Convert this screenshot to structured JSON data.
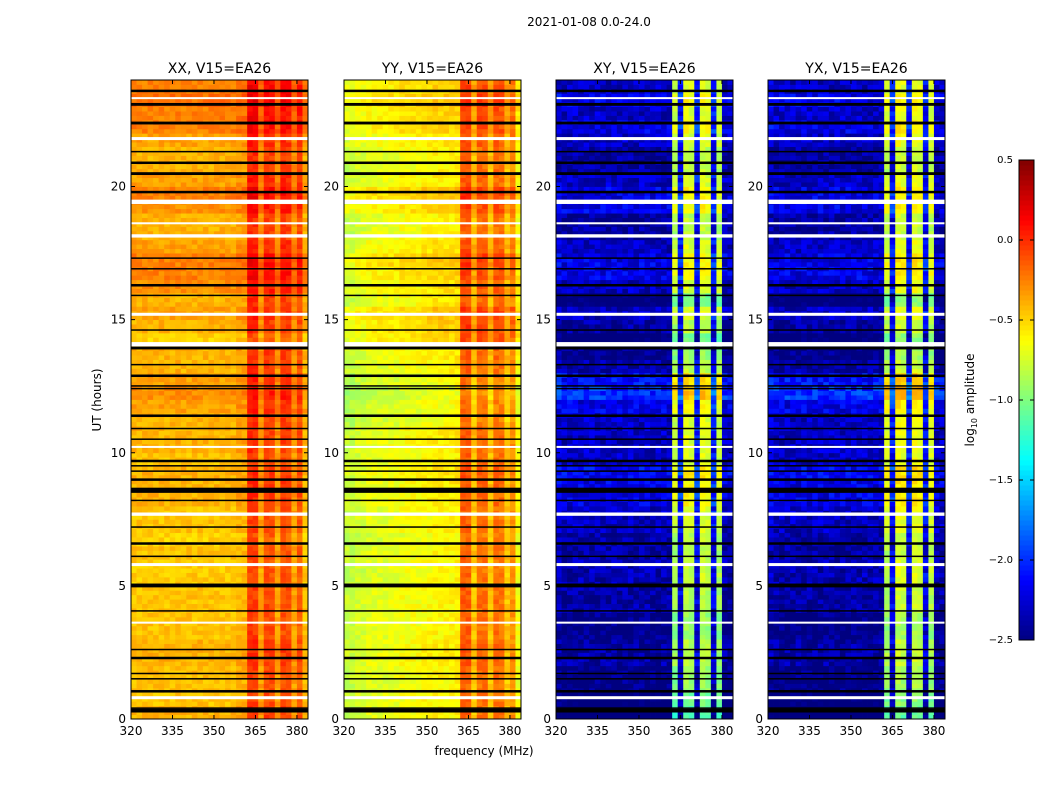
{
  "chart_data": {
    "type": "heatmap",
    "suptitle": "2021-01-08 0.0-24.0",
    "xlabel": "frequency (MHz)",
    "ylabel": "UT (hours)",
    "xlim": [
      320,
      384
    ],
    "ylim": [
      0,
      24
    ],
    "xticks": [
      320,
      335,
      350,
      365,
      380
    ],
    "xtick_labels": [
      "320",
      "335",
      "350",
      "365",
      "380"
    ],
    "yticks": [
      0,
      5,
      10,
      15,
      20
    ],
    "ytick_labels": [
      "0",
      "5",
      "10",
      "15",
      "20"
    ],
    "colorbar": {
      "label_main": "log",
      "label_sub": "10",
      "label_rest": " amplitude",
      "range": [
        -2.5,
        0.5
      ],
      "colormap": "jet",
      "ticks": [
        0.5,
        0.0,
        -0.5,
        -1.0,
        -1.5,
        -2.0,
        -2.5
      ],
      "tick_labels": [
        "0.5",
        "0.0",
        "−0.5",
        "−1.0",
        "−1.5",
        "−2.0",
        "−2.5"
      ]
    },
    "channel_width_mhz": 2,
    "time_step_hours": 0.5,
    "panels": [
      {
        "title": "XX, V15=EA26",
        "channel_profile": [
          -0.45,
          -0.45,
          -0.45,
          -0.45,
          -0.45,
          -0.45,
          -0.45,
          -0.45,
          -0.45,
          -0.45,
          -0.45,
          -0.45,
          -0.45,
          -0.45,
          -0.45,
          -0.45,
          -0.45,
          -0.45,
          -0.45,
          -0.4,
          -0.4,
          -0.05,
          -0.05,
          -0.35,
          -0.1,
          -0.1,
          -0.35,
          -0.1,
          -0.12,
          -0.35,
          -0.15,
          -0.45
        ],
        "time_offset": [
          0.05,
          0,
          0,
          0.02,
          0.05,
          0.05,
          0,
          0,
          0,
          0,
          -0.02,
          -0.02,
          0,
          -0.05,
          0,
          0,
          0.05,
          0.05,
          0.05,
          0,
          0.05,
          0.05,
          0.05,
          0.1,
          0.15,
          0.1,
          0.05,
          0.05,
          -0.05,
          0.05,
          0.1,
          0.05,
          0.15,
          0.2,
          0.2,
          0.1,
          0.05,
          0.05,
          0.15,
          0.2,
          0.1,
          0.05,
          0.05,
          0.1,
          0.2,
          0.2,
          0.25,
          0.2
        ]
      },
      {
        "title": "YY, V15=EA26",
        "channel_profile": [
          -0.8,
          -0.8,
          -0.75,
          -0.75,
          -0.7,
          -0.7,
          -0.7,
          -0.7,
          -0.68,
          -0.68,
          -0.65,
          -0.65,
          -0.65,
          -0.65,
          -0.62,
          -0.62,
          -0.6,
          -0.6,
          -0.6,
          -0.6,
          -0.58,
          -0.15,
          -0.15,
          -0.45,
          -0.2,
          -0.2,
          -0.45,
          -0.2,
          -0.22,
          -0.45,
          -0.3,
          -0.65
        ],
        "time_offset": [
          0,
          0,
          -0.02,
          0,
          0.02,
          0.02,
          0,
          0,
          0,
          0,
          -0.02,
          -0.02,
          0,
          -0.05,
          0,
          0,
          0.02,
          0.02,
          0.05,
          0,
          0.02,
          0.02,
          -0.05,
          -0.05,
          -0.1,
          -0.05,
          0,
          0.02,
          0.1,
          0.12,
          0.15,
          0.02,
          0.05,
          0.1,
          0.15,
          0.05,
          0,
          0,
          0.1,
          0.15,
          0.02,
          0,
          0,
          0.05,
          0.1,
          0.1,
          0.15,
          0.1
        ]
      },
      {
        "title": "XY, V15=EA26",
        "channel_profile": [
          -2.35,
          -2.4,
          -2.4,
          -2.4,
          -2.4,
          -2.4,
          -2.4,
          -2.4,
          -2.4,
          -2.4,
          -2.4,
          -2.4,
          -2.4,
          -2.4,
          -2.4,
          -2.4,
          -2.4,
          -2.4,
          -2.4,
          -2.4,
          -2.4,
          -0.9,
          -2.2,
          -0.8,
          -0.85,
          -2.2,
          -0.8,
          -0.85,
          -2.2,
          -0.9,
          -2.4,
          -2.4
        ],
        "time_offset": [
          -0.3,
          -0.2,
          -0.1,
          -0.1,
          0,
          0,
          -0.1,
          -0.1,
          0,
          0,
          0.05,
          0.05,
          0,
          0,
          0.1,
          0.1,
          0.2,
          0.2,
          0.25,
          0.1,
          0.1,
          0.1,
          0.1,
          0.2,
          0.4,
          0.3,
          0,
          -0.1,
          -0.2,
          0,
          0.1,
          -0.2,
          0.1,
          0.2,
          0.2,
          0.1,
          0,
          0,
          0.2,
          0.2,
          0.1,
          0,
          0,
          0.1,
          0.2,
          0.1,
          0.2,
          0.1
        ]
      },
      {
        "title": "YX, V15=EA26",
        "channel_profile": [
          -2.35,
          -2.4,
          -2.4,
          -2.4,
          -2.4,
          -2.4,
          -2.4,
          -2.4,
          -2.4,
          -2.4,
          -2.4,
          -2.4,
          -2.4,
          -2.4,
          -2.4,
          -2.4,
          -2.4,
          -2.4,
          -2.4,
          -2.4,
          -2.4,
          -0.85,
          -2.2,
          -0.75,
          -0.8,
          -2.2,
          -0.75,
          -0.8,
          -2.2,
          -0.85,
          -2.4,
          -2.4
        ],
        "time_offset": [
          -0.3,
          -0.2,
          -0.1,
          -0.1,
          0,
          0,
          -0.1,
          -0.1,
          0,
          0,
          0.05,
          0.05,
          0,
          0,
          0.1,
          0.1,
          0.2,
          0.2,
          0.25,
          0.1,
          0.1,
          0.1,
          0.1,
          0.2,
          0.4,
          0.3,
          0,
          -0.1,
          -0.2,
          0,
          0.1,
          -0.2,
          0.1,
          0.2,
          0.2,
          0.1,
          0,
          0,
          0.2,
          0.2,
          0.1,
          0,
          0,
          0.1,
          0.2,
          0.1,
          0.2,
          0.1
        ]
      }
    ],
    "flagged_black_ut": [
      0.3,
      0.35,
      0.4,
      1.05,
      1.5,
      1.7,
      2.3,
      2.6,
      4.05,
      5.0,
      5.05,
      6.1,
      6.6,
      7.2,
      8.2,
      8.55,
      8.6,
      8.65,
      9.0,
      9.3,
      9.5,
      9.7,
      10.5,
      10.9,
      11.4,
      12.4,
      12.5,
      12.9,
      13.3,
      13.9,
      13.95,
      14.6,
      15.9,
      16.3,
      16.9,
      17.3,
      19.8,
      20.45,
      20.5,
      20.9,
      21.3,
      22.35,
      22.4,
      23.05,
      23.1,
      23.6
    ],
    "flagged_white_ut": [
      0.8,
      3.6,
      5.8,
      7.65,
      7.7,
      10.2,
      14.05,
      14.1,
      15.2,
      18.1,
      18.15,
      18.6,
      19.4,
      19.45,
      21.8,
      23.3
    ]
  }
}
